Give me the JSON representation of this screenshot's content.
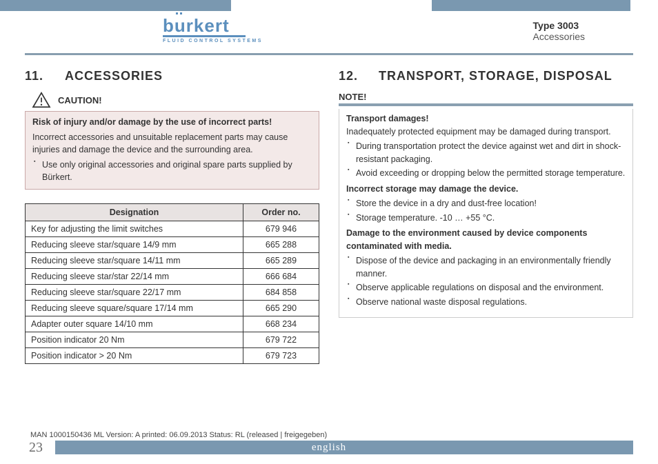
{
  "header": {
    "logo_text": "burkert",
    "logo_sub": "FLUID CONTROL SYSTEMS",
    "type_line": "Type 3003",
    "acc_line": "Accessories"
  },
  "left": {
    "section_num": "11.",
    "section_title": "ACCESSORIES",
    "caution_label": "CAUTION!",
    "risk_line": "Risk of injury and/or damage by the use of incorrect parts!",
    "risk_para": "Incorrect accessories and unsuitable replacement parts may cause injuries and damage the device and the surrounding area.",
    "risk_bullet": "Use only original accessories and original spare parts supplied by Bürkert.",
    "table": {
      "col1": "Designation",
      "col2": "Order no.",
      "rows": [
        {
          "d": "Key for adjusting the limit switches",
          "o": "679 946"
        },
        {
          "d": "Reducing sleeve star/square 14/9 mm",
          "o": "665 288"
        },
        {
          "d": "Reducing sleeve star/square 14/11 mm",
          "o": "665 289"
        },
        {
          "d": "Reducing sleeve star/star 22/14 mm",
          "o": "666 684"
        },
        {
          "d": "Reducing sleeve star/square 22/17 mm",
          "o": "684 858"
        },
        {
          "d": "Reducing sleeve square/square 17/14 mm",
          "o": "665 290"
        },
        {
          "d": "Adapter outer square 14/10 mm",
          "o": "668 234"
        },
        {
          "d": "Position indicator 20 Nm",
          "o": "679 722"
        },
        {
          "d": "Position indicator > 20 Nm",
          "o": "679 723"
        }
      ]
    }
  },
  "right": {
    "section_num": "12.",
    "section_title": "TRANSPORT, STORAGE, DISPOSAL",
    "note_label": "NOTE!",
    "p1_bold": "Transport damages!",
    "p1": "Inadequately protected equipment may be damaged during transport.",
    "b1": "During transportation protect the device against wet and dirt in shock-resistant packaging.",
    "b2": "Avoid exceeding or dropping below the permitted storage temperature.",
    "p2_bold": "Incorrect storage may damage the device.",
    "b3": "Store the device in a dry and dust-free location!",
    "b4": "Storage temperature. -10 … +55 °C.",
    "p3_bold": "Damage to the environment caused by device components contaminated with media.",
    "b5": "Dispose of the device and packaging in an environmentally friendly manner.",
    "b6": "Observe applicable regulations on disposal and the environment.",
    "b7": "Observe national waste disposal regulations."
  },
  "footer": {
    "meta": "MAN 1000150436 ML Version: A printed: 06.09.2013 Status: RL (released | freigegeben)",
    "page": "23",
    "lang": "english"
  },
  "colors": {
    "bar": "#7a98b0",
    "logo": "#5b8fbd",
    "caution_bg": "#f3e9e8",
    "caution_border": "#c9a8a8",
    "table_header_bg": "#e8e3e2"
  }
}
